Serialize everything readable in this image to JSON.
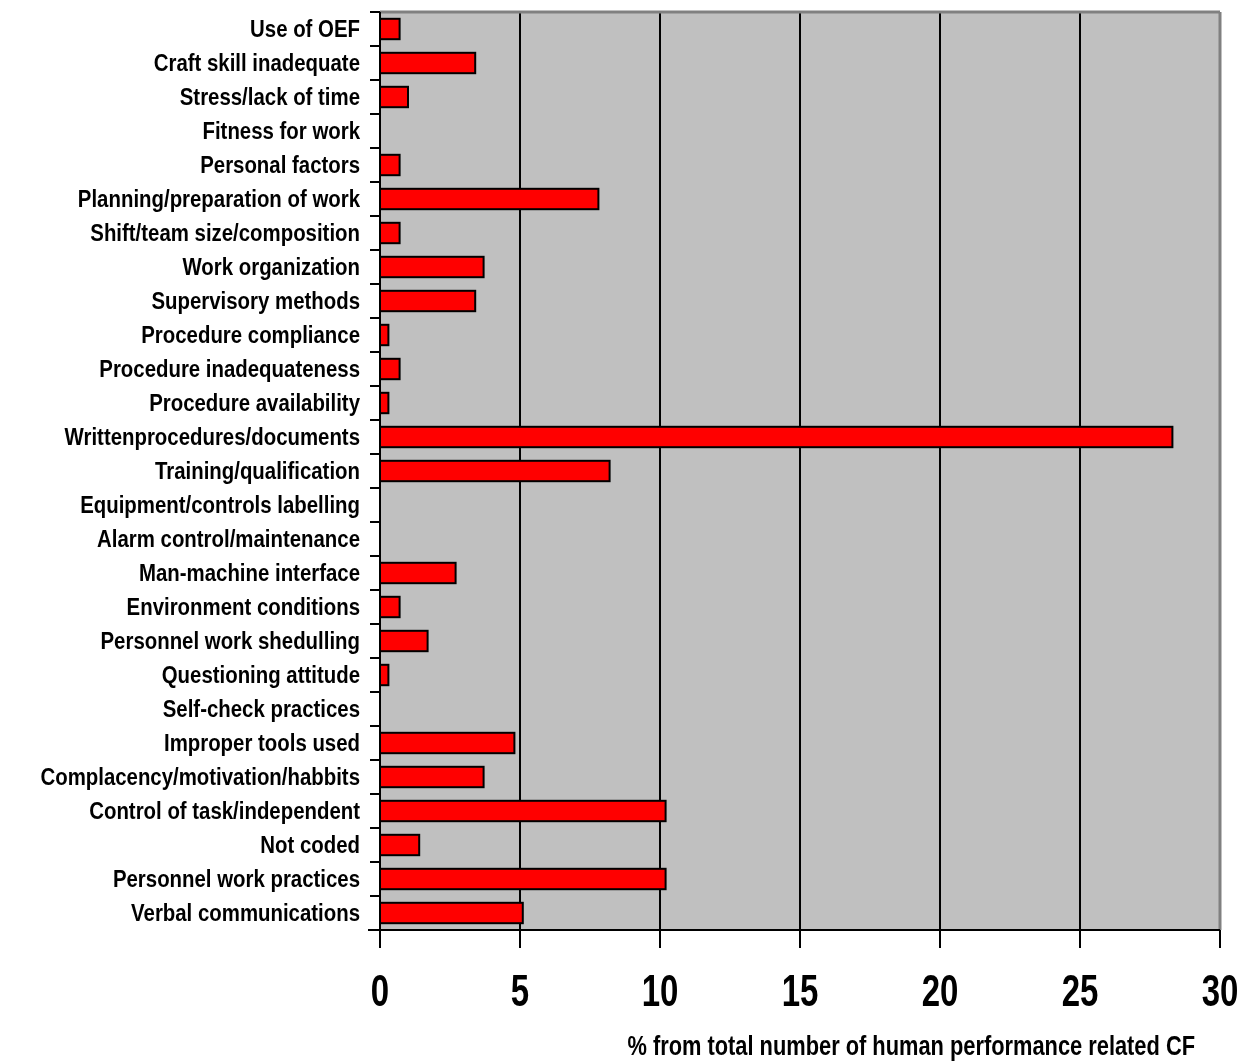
{
  "chart_data": {
    "type": "bar",
    "orientation": "horizontal",
    "xlabel": "% from total number of human performance related CF",
    "categories": [
      "Use of OEF",
      "Craft skill inadequate",
      "Stress/lack of time",
      "Fitness for work",
      "Personal factors",
      "Planning/preparation of work",
      "Shift/team size/composition",
      "Work organization",
      "Supervisory methods",
      "Procedure compliance",
      "Procedure inadequateness",
      "Procedure availability",
      "Writtenprocedures/documents",
      "Training/qualification",
      "Equipment/controls labelling",
      "Alarm control/maintenance",
      "Man-machine interface",
      "Environment conditions",
      "Personnel work shedulling",
      "Questioning attitude",
      "Self-check practices",
      "Improper tools used",
      "Complacency/motivation/habbits",
      "Control of task/independent",
      "Not coded",
      "Personnel work practices",
      "Verbal communications"
    ],
    "values": [
      0.7,
      3.4,
      1.0,
      0,
      0.7,
      7.8,
      0.7,
      3.7,
      3.4,
      0.3,
      0.7,
      0.3,
      28.3,
      8.2,
      0,
      0,
      2.7,
      0.7,
      1.7,
      0.3,
      0,
      4.8,
      3.7,
      10.2,
      1.4,
      10.2,
      5.1
    ],
    "color": "#ff0000",
    "xlim": [
      0,
      30
    ],
    "xticks": [
      0,
      5,
      10,
      15,
      20,
      25,
      30
    ],
    "grid": "x"
  }
}
